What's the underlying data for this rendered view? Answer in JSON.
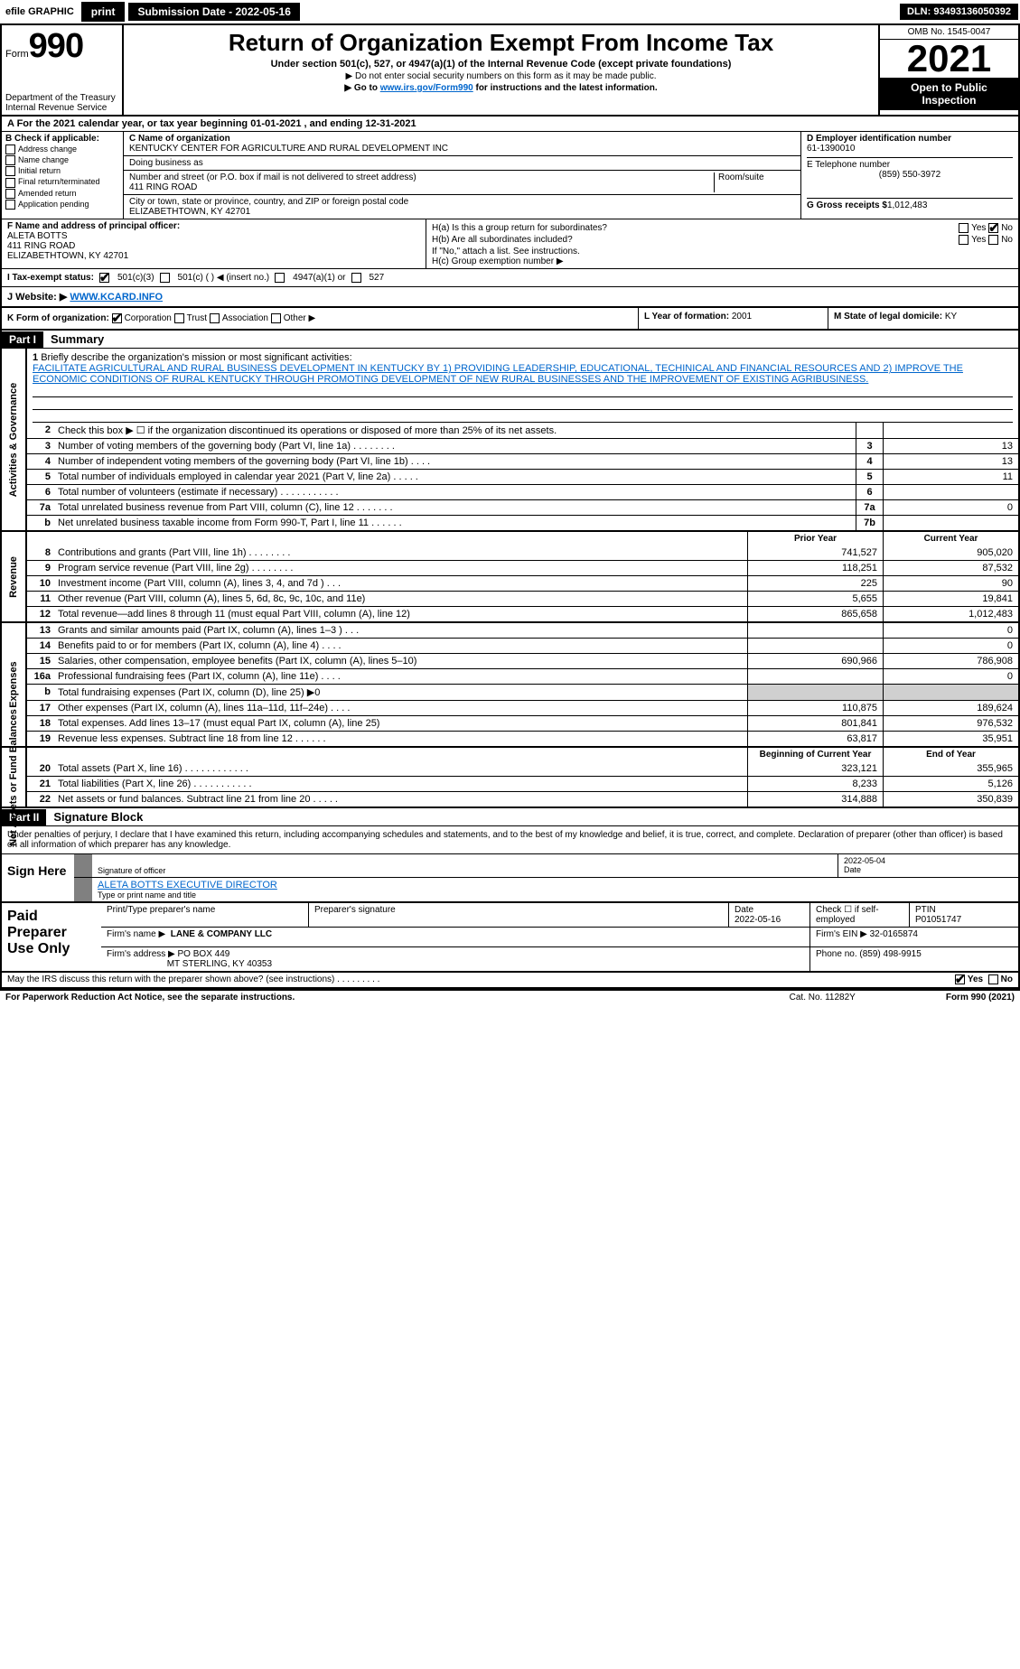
{
  "topbar": {
    "efile": "efile GRAPHIC",
    "print": "print",
    "submission_label": "Submission Date - 2022-05-16",
    "dln": "DLN: 93493136050392"
  },
  "header": {
    "form_label": "Form",
    "form_number": "990",
    "dept": "Department of the Treasury",
    "irs": "Internal Revenue Service",
    "title": "Return of Organization Exempt From Income Tax",
    "subtitle": "Under section 501(c), 527, or 4947(a)(1) of the Internal Revenue Code (except private foundations)",
    "note1": "▶ Do not enter social security numbers on this form as it may be made public.",
    "note2_pre": "▶ Go to ",
    "note2_link": "www.irs.gov/Form990",
    "note2_post": " for instructions and the latest information.",
    "omb": "OMB No. 1545-0047",
    "year": "2021",
    "open": "Open to Public Inspection"
  },
  "row_a": "A For the 2021 calendar year, or tax year beginning 01-01-2021     , and ending 12-31-2021",
  "block_b": {
    "header": "B Check if applicable:",
    "opts": [
      "Address change",
      "Name change",
      "Initial return",
      "Final return/terminated",
      "Amended return",
      "Application pending"
    ]
  },
  "block_c": {
    "name_lbl": "C Name of organization",
    "name": "KENTUCKY CENTER FOR AGRICULTURE AND RURAL DEVELOPMENT INC",
    "dba_lbl": "Doing business as",
    "dba": "",
    "street_lbl": "Number and street (or P.O. box if mail is not delivered to street address)",
    "room_lbl": "Room/suite",
    "street": "411 RING ROAD",
    "city_lbl": "City or town, state or province, country, and ZIP or foreign postal code",
    "city": "ELIZABETHTOWN, KY  42701"
  },
  "block_d": {
    "ein_lbl": "D Employer identification number",
    "ein": "61-1390010",
    "phone_lbl": "E Telephone number",
    "phone": "(859) 550-3972",
    "gross_lbl": "G Gross receipts $",
    "gross": "1,012,483"
  },
  "block_f": {
    "lbl": "F Name and address of principal officer:",
    "name": "ALETA BOTTS",
    "addr1": "411 RING ROAD",
    "addr2": "ELIZABETHTOWN, KY  42701"
  },
  "block_h": {
    "a_lbl": "H(a)  Is this a group return for subordinates?",
    "a_yes": "Yes",
    "a_no": "No",
    "b_lbl": "H(b)  Are all subordinates included?",
    "b_yes": "Yes",
    "b_no": "No",
    "b_note": "If \"No,\" attach a list. See instructions.",
    "c_lbl": "H(c)  Group exemption number ▶"
  },
  "row_i": {
    "lbl": "I  Tax-exempt status:",
    "o1": "501(c)(3)",
    "o2": "501(c) (  ) ◀ (insert no.)",
    "o3": "4947(a)(1) or",
    "o4": "527"
  },
  "row_j": {
    "lbl": "J  Website: ▶ ",
    "url": "WWW.KCARD.INFO"
  },
  "row_k": {
    "lbl": "K Form of organization:",
    "o1": "Corporation",
    "o2": "Trust",
    "o3": "Association",
    "o4": "Other ▶"
  },
  "row_l": {
    "lbl": "L Year of formation:",
    "val": "2001"
  },
  "row_m": {
    "lbl": "M State of legal domicile:",
    "val": "KY"
  },
  "part1": {
    "num": "Part I",
    "title": "Summary"
  },
  "side_labels": {
    "gov": "Activities & Governance",
    "rev": "Revenue",
    "exp": "Expenses",
    "net": "Net Assets or Fund Balances"
  },
  "mission": {
    "num": "1",
    "lbl": "Briefly describe the organization's mission or most significant activities:",
    "text": "FACILITATE AGRICULTURAL AND RURAL BUSINESS DEVELOPMENT IN KENTUCKY BY 1) PROVIDING LEADERSHIP, EDUCATIONAL, TECHINICAL AND FINANCIAL RESOURCES AND 2) IMPROVE THE ECONOMIC CONDITIONS OF RURAL KENTUCKY THROUGH PROMOTING DEVELOPMENT OF NEW RURAL BUSINESSES AND THE IMPROVEMENT OF EXISTING AGRIBUSINESS."
  },
  "gov_lines": [
    {
      "n": "2",
      "t": "Check this box ▶ ☐ if the organization discontinued its operations or disposed of more than 25% of its net assets.",
      "box": "",
      "v": ""
    },
    {
      "n": "3",
      "t": "Number of voting members of the governing body (Part VI, line 1a)   .    .    .    .    .    .    .    .",
      "box": "3",
      "v": "13"
    },
    {
      "n": "4",
      "t": "Number of independent voting members of the governing body (Part VI, line 1b)   .    .    .    .",
      "box": "4",
      "v": "13"
    },
    {
      "n": "5",
      "t": "Total number of individuals employed in calendar year 2021 (Part V, line 2a)   .    .    .    .    .",
      "box": "5",
      "v": "11"
    },
    {
      "n": "6",
      "t": "Total number of volunteers (estimate if necessary)    .    .    .    .    .    .    .    .    .    .    .",
      "box": "6",
      "v": ""
    },
    {
      "n": "7a",
      "t": "Total unrelated business revenue from Part VIII, column (C), line 12   .    .    .    .    .    .    .",
      "box": "7a",
      "v": "0"
    },
    {
      "n": "b",
      "t": "Net unrelated business taxable income from Form 990-T, Part I, line 11   .    .    .    .    .    .",
      "box": "7b",
      "v": ""
    }
  ],
  "col_hdrs": {
    "prior": "Prior Year",
    "current": "Current Year",
    "boy": "Beginning of Current Year",
    "eoy": "End of Year"
  },
  "rev_lines": [
    {
      "n": "8",
      "t": "Contributions and grants (Part VIII, line 1h)    .    .    .    .    .    .    .    .",
      "p": "741,527",
      "c": "905,020"
    },
    {
      "n": "9",
      "t": "Program service revenue (Part VIII, line 2g)   .    .    .    .    .    .    .    .",
      "p": "118,251",
      "c": "87,532"
    },
    {
      "n": "10",
      "t": "Investment income (Part VIII, column (A), lines 3, 4, and 7d )    .    .    .",
      "p": "225",
      "c": "90"
    },
    {
      "n": "11",
      "t": "Other revenue (Part VIII, column (A), lines 5, 6d, 8c, 9c, 10c, and 11e)",
      "p": "5,655",
      "c": "19,841"
    },
    {
      "n": "12",
      "t": "Total revenue—add lines 8 through 11 (must equal Part VIII, column (A), line 12)",
      "p": "865,658",
      "c": "1,012,483"
    }
  ],
  "exp_lines": [
    {
      "n": "13",
      "t": "Grants and similar amounts paid (Part IX, column (A), lines 1–3 )   .    .    .",
      "p": "",
      "c": "0"
    },
    {
      "n": "14",
      "t": "Benefits paid to or for members (Part IX, column (A), line 4)   .    .    .    .",
      "p": "",
      "c": "0"
    },
    {
      "n": "15",
      "t": "Salaries, other compensation, employee benefits (Part IX, column (A), lines 5–10)",
      "p": "690,966",
      "c": "786,908"
    },
    {
      "n": "16a",
      "t": "Professional fundraising fees (Part IX, column (A), line 11e)   .    .    .    .",
      "p": "",
      "c": "0"
    },
    {
      "n": "b",
      "t": "Total fundraising expenses (Part IX, column (D), line 25) ▶0",
      "p": "grey",
      "c": "grey"
    },
    {
      "n": "17",
      "t": "Other expenses (Part IX, column (A), lines 11a–11d, 11f–24e)    .    .    .    .",
      "p": "110,875",
      "c": "189,624"
    },
    {
      "n": "18",
      "t": "Total expenses. Add lines 13–17 (must equal Part IX, column (A), line 25)",
      "p": "801,841",
      "c": "976,532"
    },
    {
      "n": "19",
      "t": "Revenue less expenses. Subtract line 18 from line 12   .    .    .    .    .    .",
      "p": "63,817",
      "c": "35,951"
    }
  ],
  "net_lines": [
    {
      "n": "20",
      "t": "Total assets (Part X, line 16)   .    .    .    .    .    .    .    .    .    .    .    .",
      "p": "323,121",
      "c": "355,965"
    },
    {
      "n": "21",
      "t": "Total liabilities (Part X, line 26)    .    .    .    .    .    .    .    .    .    .    .",
      "p": "8,233",
      "c": "5,126"
    },
    {
      "n": "22",
      "t": "Net assets or fund balances. Subtract line 21 from line 20   .    .    .    .    .",
      "p": "314,888",
      "c": "350,839"
    }
  ],
  "part2": {
    "num": "Part II",
    "title": "Signature Block"
  },
  "sig_decl": "Under penalties of perjury, I declare that I have examined this return, including accompanying schedules and statements, and to the best of my knowledge and belief, it is true, correct, and complete. Declaration of preparer (other than officer) is based on all information of which preparer has any knowledge.",
  "sign": {
    "here": "Sign Here",
    "sig_lbl": "Signature of officer",
    "date_lbl": "Date",
    "date": "2022-05-04",
    "name": "ALETA BOTTS EXECUTIVE DIRECTOR",
    "name_lbl": "Type or print name and title"
  },
  "prep": {
    "title": "Paid Preparer Use Only",
    "h1": "Print/Type preparer's name",
    "h2": "Preparer's signature",
    "h3": "Date",
    "h4": "Check ☐ if self-employed",
    "h5": "PTIN",
    "date": "2022-05-16",
    "ptin": "P01051747",
    "firm_name_lbl": "Firm's name    ▶",
    "firm_name": "LANE & COMPANY LLC",
    "firm_ein_lbl": "Firm's EIN ▶",
    "firm_ein": "32-0165874",
    "firm_addr_lbl": "Firm's address ▶",
    "firm_addr1": "PO BOX 449",
    "firm_addr2": "MT STERLING, KY  40353",
    "phone_lbl": "Phone no.",
    "phone": "(859) 498-9915"
  },
  "discuss": {
    "t": "May the IRS discuss this return with the preparer shown above? (see instructions)    .    .    .    .    .    .    .    .    .",
    "yes": "Yes",
    "no": "No"
  },
  "footer": {
    "l": "For Paperwork Reduction Act Notice, see the separate instructions.",
    "c": "Cat. No. 11282Y",
    "r": "Form 990 (2021)"
  }
}
